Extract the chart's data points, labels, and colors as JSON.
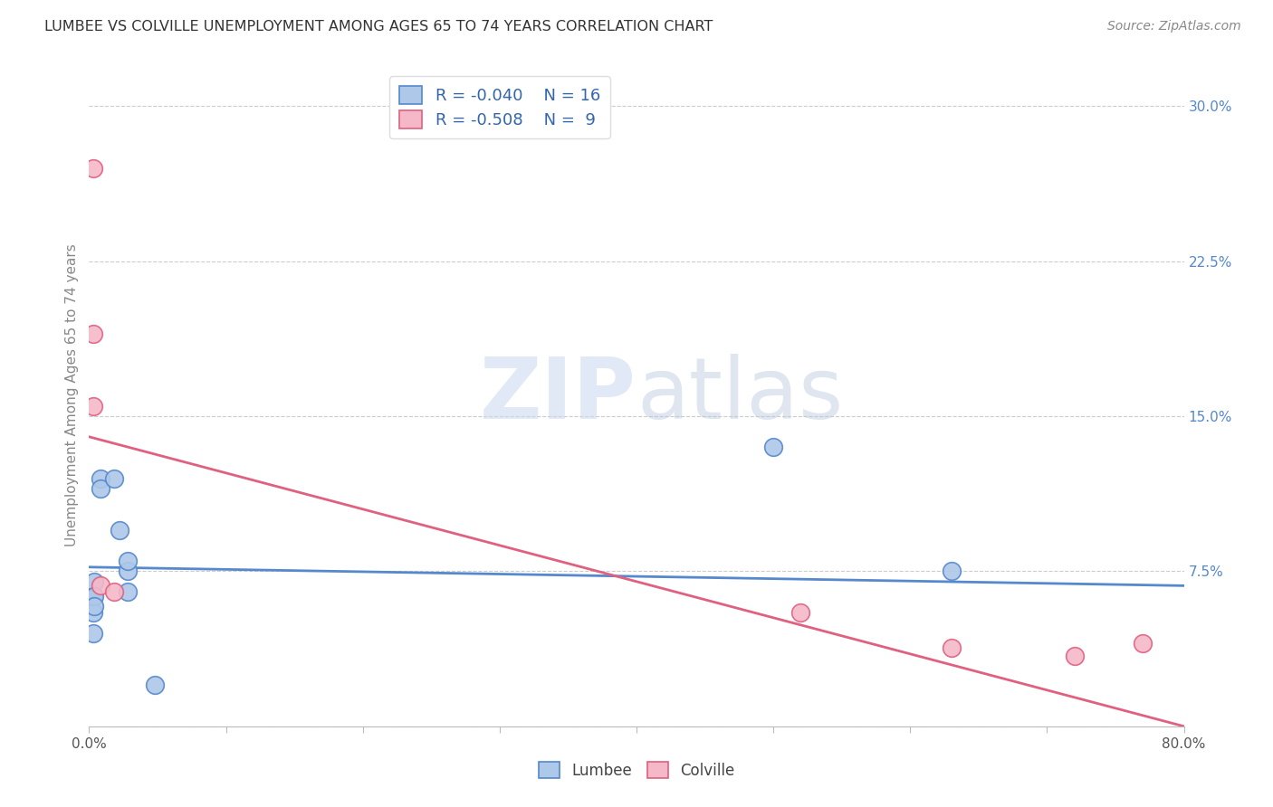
{
  "title": "LUMBEE VS COLVILLE UNEMPLOYMENT AMONG AGES 65 TO 74 YEARS CORRELATION CHART",
  "source": "Source: ZipAtlas.com",
  "ylabel": "Unemployment Among Ages 65 to 74 years",
  "xlim": [
    0.0,
    0.8
  ],
  "ylim": [
    0.0,
    0.32
  ],
  "xticks": [
    0.0,
    0.1,
    0.2,
    0.3,
    0.4,
    0.5,
    0.6,
    0.7,
    0.8
  ],
  "xticklabels": [
    "0.0%",
    "",
    "",
    "",
    "",
    "",
    "",
    "",
    "80.0%"
  ],
  "yticks_right": [
    0.3,
    0.225,
    0.15,
    0.075,
    0.0
  ],
  "ytick_right_labels": [
    "30.0%",
    "22.5%",
    "15.0%",
    "7.5%",
    ""
  ],
  "lumbee_color": "#adc8e8",
  "colville_color": "#f5b8c8",
  "lumbee_line_color": "#5588cc",
  "colville_line_color": "#e06080",
  "lumbee_R": -0.04,
  "lumbee_N": 16,
  "colville_R": -0.508,
  "colville_N": 9,
  "watermark_zip": "ZIP",
  "watermark_atlas": "atlas",
  "lumbee_x": [
    0.003,
    0.003,
    0.003,
    0.004,
    0.004,
    0.004,
    0.008,
    0.008,
    0.018,
    0.022,
    0.028,
    0.028,
    0.028,
    0.048,
    0.5,
    0.63
  ],
  "lumbee_y": [
    0.063,
    0.055,
    0.045,
    0.07,
    0.063,
    0.058,
    0.12,
    0.115,
    0.12,
    0.095,
    0.065,
    0.075,
    0.08,
    0.02,
    0.135,
    0.075
  ],
  "colville_x": [
    0.003,
    0.003,
    0.003,
    0.008,
    0.018,
    0.52,
    0.63,
    0.72,
    0.77
  ],
  "colville_y": [
    0.27,
    0.19,
    0.155,
    0.068,
    0.065,
    0.055,
    0.038,
    0.034,
    0.04
  ],
  "lumbee_line_x": [
    0.0,
    0.8
  ],
  "lumbee_line_y": [
    0.077,
    0.068
  ],
  "colville_line_x": [
    0.0,
    0.8
  ],
  "colville_line_y": [
    0.14,
    0.0
  ],
  "grid_color": "#cccccc",
  "background_color": "#ffffff",
  "title_color": "#333333",
  "axis_label_color": "#888888",
  "right_tick_color": "#5588cc",
  "legend_color": "#3366aa",
  "marker_size": 200
}
